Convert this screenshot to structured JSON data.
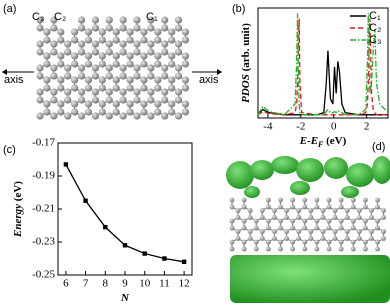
{
  "panel_labels": [
    "(a)",
    "(b)",
    "(c)",
    "(d)"
  ],
  "structure": {
    "atom_labels": [
      "C₃",
      "C₂",
      "C₁"
    ],
    "axis_labels": [
      "axis",
      "axis"
    ]
  },
  "chart_data": [
    {
      "type": "line",
      "xlabel": [
        "E-E",
        "F",
        " (eV)"
      ],
      "ylabel": [
        "PDOS",
        " (arb. unit)"
      ],
      "x": [
        -4.6,
        -4.5,
        -4.3,
        -4.1,
        -3.9,
        -3,
        -2.35,
        -2.25,
        -2.2,
        -2.15,
        -2.1,
        -2.05,
        -1.95,
        -1,
        -0.6,
        -0.45,
        -0.35,
        -0.2,
        -0.05,
        0.05,
        0.15,
        0.25,
        0.35,
        0.5,
        0.7,
        1.5,
        1.95,
        2.05,
        2.1,
        2.15,
        2.2,
        2.3,
        2.4,
        2.5,
        2.6,
        2.8,
        3.3
      ],
      "series": [
        {
          "name": "C₁",
          "color": "#000000",
          "dash": "solid",
          "values": [
            0,
            0.02,
            0.05,
            0.03,
            0.02,
            0,
            0,
            0,
            0,
            0,
            0,
            0,
            0,
            0,
            0.02,
            0.3,
            0.6,
            0.15,
            0.1,
            0.45,
            0.2,
            0.5,
            0.4,
            0.1,
            0.02,
            0,
            0,
            0,
            0,
            0,
            0,
            0,
            0,
            0,
            0,
            0,
            0
          ]
        },
        {
          "name": "C₂",
          "color": "#e8161b",
          "dash": "dashed",
          "values": [
            0,
            0.01,
            0.03,
            0.02,
            0.01,
            0,
            0.02,
            0.1,
            0.3,
            0.6,
            0.9,
            0.3,
            0.02,
            0,
            0,
            0,
            0,
            0,
            0,
            0,
            0,
            0,
            0,
            0,
            0,
            0,
            0.02,
            0.1,
            0.3,
            0.6,
            0.9,
            0.2,
            0.05,
            0.02,
            0,
            0,
            0
          ]
        },
        {
          "name": "C₃",
          "color": "#21b521",
          "dash": "dashdot",
          "values": [
            0,
            0.03,
            0.08,
            0.05,
            0.03,
            0,
            0.1,
            0.5,
            0.95,
            0.4,
            0.1,
            0.02,
            0,
            0,
            0,
            0.03,
            0.05,
            0.02,
            0.02,
            0.03,
            0.02,
            0.04,
            0.03,
            0.02,
            0,
            0,
            0.05,
            0.5,
            0.95,
            0.5,
            0.2,
            0.3,
            0.6,
            0.8,
            0.3,
            0.1,
            0.02
          ]
        }
      ],
      "xlim": [
        -4.6,
        3.3
      ],
      "ylim": [
        -0.03,
        1.0
      ],
      "xticks": [
        -4,
        -2,
        0,
        2
      ],
      "legend": "upper-right"
    },
    {
      "type": "line",
      "xlabel": [
        "N"
      ],
      "ylabel": [
        "Energy",
        " (eV)"
      ],
      "x": [
        6,
        7,
        8,
        9,
        10,
        11,
        12
      ],
      "values": [
        -0.183,
        -0.205,
        -0.221,
        -0.232,
        -0.237,
        -0.24,
        -0.242
      ],
      "color": "#000000",
      "marker": "square",
      "xlim": [
        5.6,
        12.4
      ],
      "ylim": [
        -0.25,
        -0.17
      ],
      "xticks": [
        6,
        7,
        8,
        9,
        10,
        11,
        12
      ],
      "yticks": [
        -0.17,
        -0.19,
        -0.21,
        -0.23,
        -0.25
      ]
    }
  ]
}
